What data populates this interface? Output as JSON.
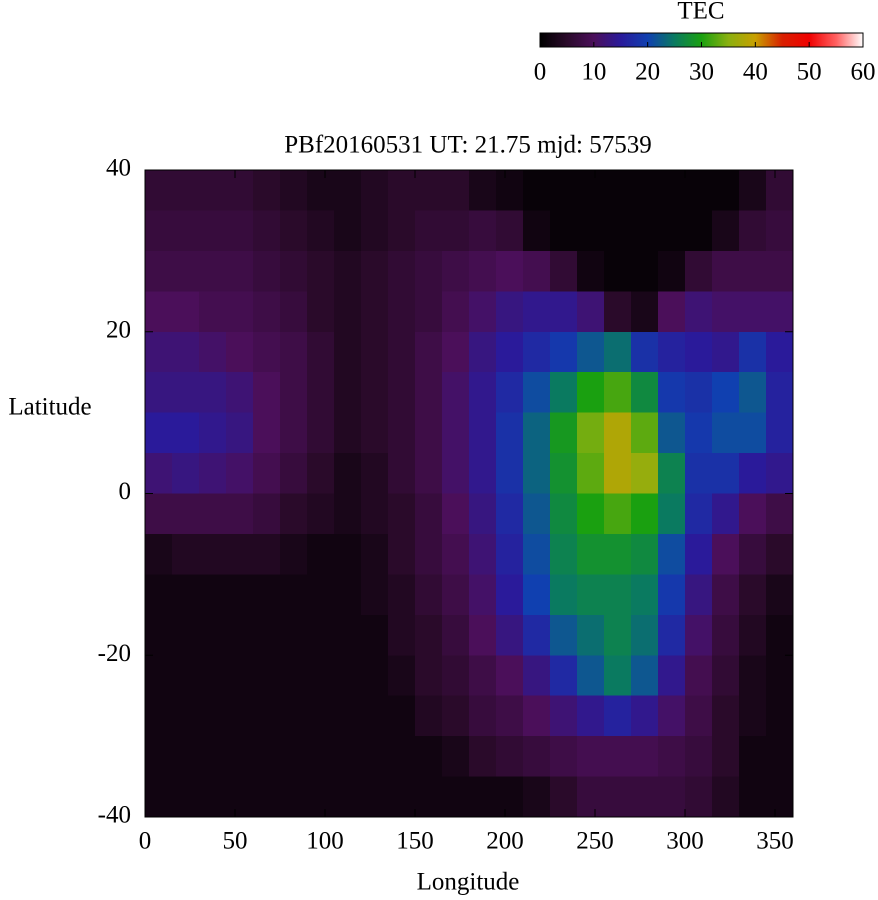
{
  "chart_data": {
    "type": "heatmap",
    "title": "PBf20160531  UT: 21.75  mjd: 57539",
    "xlabel": "Longitude",
    "ylabel": "Latitude",
    "colorbar_label": "TEC",
    "xlim": [
      0,
      360
    ],
    "xticks": [
      0,
      50,
      100,
      150,
      200,
      250,
      300,
      350
    ],
    "ylim": [
      -40,
      40
    ],
    "yticks": [
      -40,
      -20,
      0,
      20,
      40
    ],
    "zlim": [
      0,
      60
    ],
    "zticks": [
      0,
      10,
      20,
      30,
      40,
      50,
      60
    ],
    "colormap": [
      "#000000",
      "#2a0a2a",
      "#4b0f5a",
      "#2a1a9a",
      "#1040b0",
      "#0a7a60",
      "#1aa010",
      "#8ab010",
      "#c8a000",
      "#d82000",
      "#f00000",
      "#ff6060",
      "#ffffff"
    ],
    "x": [
      7.5,
      22.5,
      37.5,
      52.5,
      67.5,
      82.5,
      97.5,
      112.5,
      127.5,
      142.5,
      157.5,
      172.5,
      187.5,
      202.5,
      217.5,
      232.5,
      247.5,
      262.5,
      277.5,
      292.5,
      307.5,
      322.5,
      337.5,
      352.5
    ],
    "y": [
      37.5,
      32.5,
      27.5,
      22.5,
      17.5,
      12.5,
      7.5,
      2.5,
      -2.5,
      -7.5,
      -12.5,
      -17.5,
      -22.5,
      -27.5,
      -32.5,
      -37.5
    ],
    "values": [
      [
        6,
        6,
        6,
        6,
        5,
        4,
        3,
        3,
        4,
        5,
        5,
        5,
        3,
        2,
        1,
        1,
        1,
        1,
        1,
        1,
        1,
        1,
        3,
        6
      ],
      [
        7,
        7,
        7,
        7,
        6,
        5,
        4,
        3,
        4,
        5,
        6,
        6,
        7,
        6,
        2,
        1,
        1,
        1,
        1,
        1,
        1,
        3,
        6,
        7
      ],
      [
        8,
        8,
        8,
        8,
        7,
        6,
        5,
        4,
        5,
        6,
        7,
        8,
        9,
        10,
        9,
        6,
        2,
        1,
        1,
        2,
        6,
        8,
        8,
        8
      ],
      [
        10,
        10,
        9,
        9,
        8,
        7,
        5,
        4,
        5,
        6,
        7,
        9,
        11,
        13,
        14,
        14,
        12,
        5,
        3,
        10,
        12,
        11,
        11,
        11
      ],
      [
        12,
        12,
        11,
        10,
        9,
        8,
        6,
        4,
        5,
        6,
        8,
        10,
        13,
        15,
        17,
        19,
        22,
        24,
        18,
        16,
        15,
        14,
        18,
        15
      ],
      [
        13,
        13,
        13,
        12,
        10,
        8,
        6,
        4,
        5,
        6,
        8,
        11,
        14,
        17,
        21,
        25,
        30,
        32,
        27,
        19,
        18,
        20,
        22,
        16
      ],
      [
        15,
        15,
        14,
        13,
        10,
        8,
        6,
        4,
        5,
        6,
        8,
        11,
        14,
        18,
        23,
        29,
        34,
        38,
        33,
        22,
        19,
        21,
        21,
        16
      ],
      [
        12,
        13,
        12,
        11,
        9,
        7,
        5,
        3,
        4,
        6,
        8,
        11,
        14,
        18,
        23,
        28,
        33,
        38,
        36,
        26,
        18,
        18,
        15,
        14
      ],
      [
        8,
        8,
        8,
        8,
        7,
        5,
        4,
        3,
        4,
        5,
        7,
        10,
        13,
        17,
        22,
        27,
        30,
        32,
        30,
        25,
        17,
        14,
        10,
        8
      ],
      [
        3,
        4,
        4,
        4,
        4,
        3,
        2,
        2,
        3,
        5,
        7,
        9,
        12,
        16,
        21,
        26,
        28,
        28,
        27,
        21,
        15,
        10,
        7,
        5
      ],
      [
        2,
        2,
        2,
        2,
        2,
        2,
        2,
        2,
        3,
        4,
        6,
        8,
        11,
        15,
        20,
        25,
        26,
        26,
        25,
        19,
        13,
        8,
        5,
        3
      ],
      [
        2,
        2,
        2,
        2,
        2,
        2,
        2,
        2,
        2,
        4,
        5,
        7,
        10,
        13,
        17,
        22,
        24,
        26,
        24,
        17,
        11,
        7,
        4,
        2
      ],
      [
        2,
        2,
        2,
        2,
        2,
        2,
        2,
        2,
        2,
        3,
        5,
        6,
        8,
        10,
        13,
        17,
        22,
        25,
        22,
        14,
        9,
        6,
        3,
        2
      ],
      [
        2,
        2,
        2,
        2,
        2,
        2,
        2,
        2,
        2,
        2,
        4,
        5,
        7,
        8,
        10,
        12,
        14,
        16,
        14,
        11,
        8,
        5,
        3,
        2
      ],
      [
        2,
        2,
        2,
        2,
        2,
        2,
        2,
        2,
        2,
        2,
        2,
        3,
        5,
        6,
        7,
        8,
        9,
        9,
        9,
        8,
        7,
        5,
        2,
        2
      ],
      [
        2,
        2,
        2,
        2,
        2,
        2,
        2,
        2,
        2,
        2,
        2,
        2,
        2,
        2,
        3,
        5,
        7,
        7,
        7,
        7,
        6,
        4,
        2,
        2
      ]
    ]
  }
}
